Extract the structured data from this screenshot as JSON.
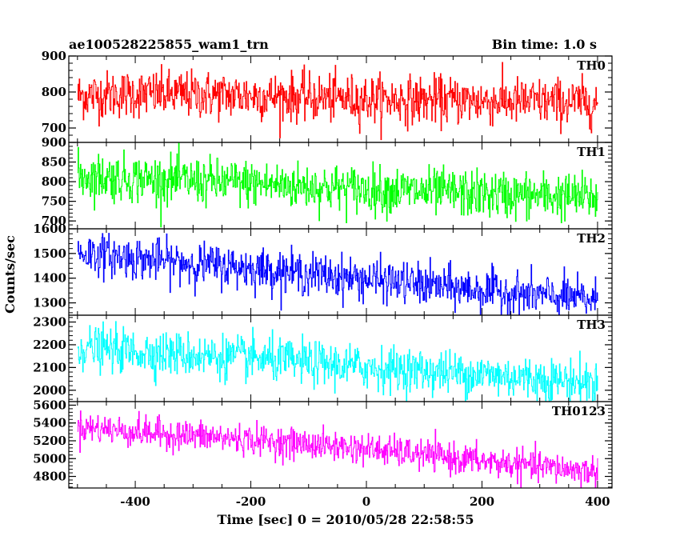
{
  "header": {
    "left_title": "ae100528225855_wam1_trn",
    "right_title": "Bin time: 1.0 s"
  },
  "chart_data": {
    "type": "line",
    "xlabel": "Time [sec] 0 = 2010/05/28 22:58:55",
    "ylabel": "Counts/sec",
    "xlim": [
      -515,
      425
    ],
    "x_ticks": [
      -400,
      -200,
      0,
      200,
      400
    ],
    "x_start": -500,
    "x_end": 400,
    "bin": 1.0,
    "panels": [
      {
        "name": "TH0",
        "color": "#ff0000",
        "ylim": [
          660,
          900
        ],
        "yticks": [
          700,
          800,
          900
        ],
        "trend": [
          [
            -500,
            790
          ],
          [
            -400,
            795
          ],
          [
            -200,
            790
          ],
          [
            0,
            780
          ],
          [
            200,
            775
          ],
          [
            400,
            770
          ]
        ],
        "noise_sd": 33
      },
      {
        "name": "TH1",
        "color": "#00ff00",
        "ylim": [
          680,
          900
        ],
        "yticks": [
          700,
          750,
          800,
          850,
          900
        ],
        "trend": [
          [
            -500,
            815
          ],
          [
            -400,
            808
          ],
          [
            -200,
            795
          ],
          [
            0,
            780
          ],
          [
            200,
            768
          ],
          [
            400,
            760
          ]
        ],
        "noise_sd": 30
      },
      {
        "name": "TH2",
        "color": "#0000ff",
        "ylim": [
          1250,
          1600
        ],
        "yticks": [
          1300,
          1400,
          1500,
          1600
        ],
        "trend": [
          [
            -500,
            1505
          ],
          [
            -400,
            1480
          ],
          [
            -200,
            1440
          ],
          [
            0,
            1395
          ],
          [
            200,
            1350
          ],
          [
            400,
            1310
          ]
        ],
        "noise_sd": 42
      },
      {
        "name": "TH3",
        "color": "#00ffff",
        "ylim": [
          1950,
          2330
        ],
        "yticks": [
          2000,
          2100,
          2200,
          2300
        ],
        "trend": [
          [
            -500,
            2190
          ],
          [
            -400,
            2170
          ],
          [
            -200,
            2140
          ],
          [
            0,
            2100
          ],
          [
            200,
            2070
          ],
          [
            400,
            2030
          ]
        ],
        "noise_sd": 48
      },
      {
        "name": "TH0123",
        "color": "#ff00ff",
        "ylim": [
          4670,
          5640
        ],
        "yticks": [
          4800,
          5000,
          5200,
          5400,
          5600
        ],
        "trend": [
          [
            -500,
            5360
          ],
          [
            -400,
            5300
          ],
          [
            -200,
            5210
          ],
          [
            0,
            5110
          ],
          [
            200,
            4970
          ],
          [
            400,
            4850
          ]
        ],
        "noise_sd": 85
      }
    ]
  }
}
